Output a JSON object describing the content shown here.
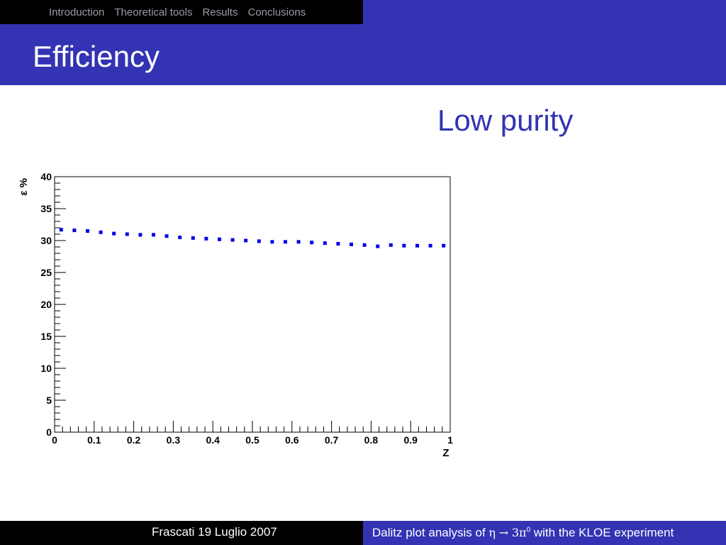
{
  "nav": {
    "items": [
      "Introduction",
      "Theoretical tools",
      "Results",
      "Conclusions"
    ]
  },
  "slide": {
    "title": "Efficiency",
    "subtitle": "Low purity"
  },
  "footer": {
    "left": "Frascati 19 Luglio 2007",
    "right_prefix": "Dalitz plot analysis of ",
    "eta": "η",
    "arrow": "→",
    "three_pi": "3π",
    "superscript": "0",
    "right_suffix": " with the KLOE experiment"
  },
  "colors": {
    "accent": "#3333b3",
    "points": "#0000e6"
  },
  "chart_data": {
    "type": "scatter",
    "xlabel": "Z",
    "ylabel": "ε %",
    "xlim": [
      0,
      1
    ],
    "ylim": [
      0,
      40
    ],
    "xticks": [
      "0",
      "0.1",
      "0.2",
      "0.3",
      "0.4",
      "0.5",
      "0.6",
      "0.7",
      "0.8",
      "0.9",
      "1"
    ],
    "yticks": [
      "0",
      "5",
      "10",
      "15",
      "20",
      "25",
      "30",
      "35",
      "40"
    ],
    "grid": false,
    "x": [
      0.0167,
      0.05,
      0.0833,
      0.1167,
      0.15,
      0.1833,
      0.2167,
      0.25,
      0.2833,
      0.3167,
      0.35,
      0.3833,
      0.4167,
      0.45,
      0.4833,
      0.5167,
      0.55,
      0.5833,
      0.6167,
      0.65,
      0.6833,
      0.7167,
      0.75,
      0.7833,
      0.8167,
      0.85,
      0.8833,
      0.9167,
      0.95,
      0.9833
    ],
    "y": [
      31.7,
      31.6,
      31.5,
      31.3,
      31.1,
      31.0,
      30.9,
      30.9,
      30.7,
      30.5,
      30.4,
      30.3,
      30.2,
      30.1,
      30.0,
      29.9,
      29.8,
      29.8,
      29.8,
      29.7,
      29.6,
      29.5,
      29.4,
      29.3,
      29.1,
      29.3,
      29.2,
      29.2,
      29.2,
      29.2
    ]
  }
}
